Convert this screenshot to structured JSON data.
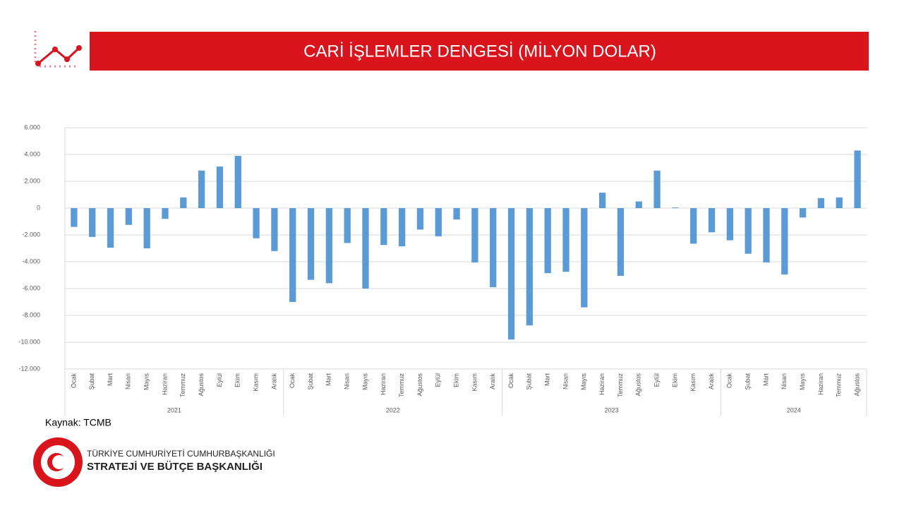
{
  "chart_data": {
    "type": "bar",
    "title": "CARİ İŞLEMLER DENGESİ (MİLYON DOLAR)",
    "categories": [
      "Ocak",
      "Şubat",
      "Mart",
      "Nisan",
      "Mayıs",
      "Haziran",
      "Temmuz",
      "Ağustos",
      "Eylül",
      "Ekim",
      "Kasım",
      "Aralık",
      "Ocak",
      "Şubat",
      "Mart",
      "Nisan",
      "Mayıs",
      "Haziran",
      "Temmuz",
      "Ağustos",
      "Eylül",
      "Ekim",
      "Kasım",
      "Aralık",
      "Ocak",
      "Şubat",
      "Mart",
      "Nisan",
      "Mayıs",
      "Haziran",
      "Temmuz",
      "Ağustos",
      "Eylül",
      "Ekim",
      "Kasım",
      "Aralık",
      "Ocak",
      "Şubat",
      "Mart",
      "Nisan",
      "Mayıs",
      "Haziran",
      "Temmuz",
      "Ağustos"
    ],
    "groups": [
      "2021",
      "2022",
      "2023",
      "2024"
    ],
    "values": [
      -1400,
      -2150,
      -2950,
      -1250,
      -3000,
      -800,
      800,
      2800,
      3100,
      3900,
      -2250,
      -3200,
      -7000,
      -5350,
      -5600,
      -2600,
      -6000,
      -2750,
      -2850,
      -1600,
      -2100,
      -850,
      -4050,
      -5900,
      -9800,
      -8750,
      -4850,
      -4750,
      -7400,
      1150,
      -5050,
      500,
      2800,
      50,
      -2650,
      -1800,
      -2400,
      -3400,
      -4050,
      -4950,
      -700,
      750,
      800,
      4300
    ],
    "color": "#5b9bd5",
    "ylim": [
      -12000,
      6000
    ],
    "yticks": [
      {
        "value": -12000,
        "label": "-12.000"
      },
      {
        "value": -10000,
        "label": "-10.000"
      },
      {
        "value": -8000,
        "label": "-8.000"
      },
      {
        "value": -6000,
        "label": "-6.000"
      },
      {
        "value": -4000,
        "label": "-4.000"
      },
      {
        "value": -2000,
        "label": "-2.000"
      },
      0,
      {
        "value": 2000,
        "label": "2.000"
      },
      {
        "value": 4000,
        "label": "4.000"
      },
      {
        "value": 6000,
        "label": "6.000"
      }
    ],
    "grid": true
  },
  "source": "Kaynak: TCMB",
  "logo": {
    "line1": "TÜRKİYE CUMHURİYETİ CUMHURBAŞKANLIĞI",
    "line2": "STRATEJİ VE BÜTÇE BAŞKANLIĞI"
  }
}
